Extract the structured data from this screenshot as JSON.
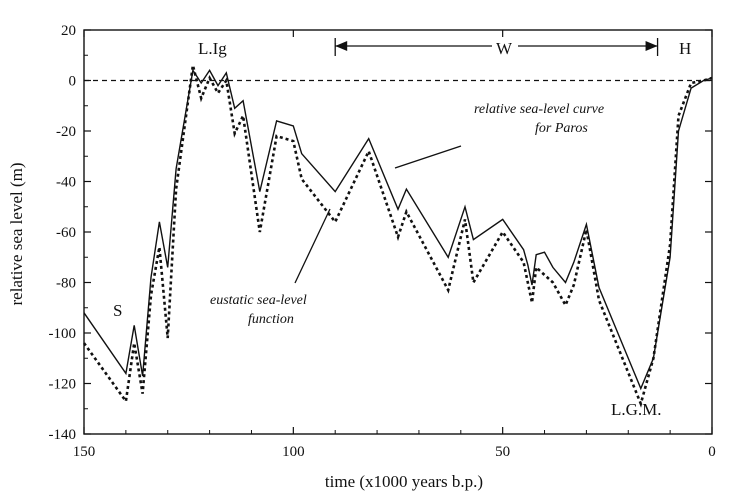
{
  "chart_data": {
    "type": "line",
    "title": "",
    "xlabel": "time (x1000 years b.p.)",
    "ylabel": "relative sea level (m)",
    "xlim": [
      150,
      0
    ],
    "ylim": [
      -140,
      20
    ],
    "x_ticks": [
      "150",
      "100",
      "50",
      "0"
    ],
    "y_ticks": [
      "20",
      "0",
      "-20",
      "-40",
      "-60",
      "-80",
      "-100",
      "-120",
      "-140"
    ],
    "grid": false,
    "series": [
      {
        "name": "relative sea-level curve for Paros",
        "style": "solid",
        "x": [
          150,
          140,
          138,
          136,
          134,
          132,
          130,
          128,
          124,
          122,
          120,
          118,
          116,
          114,
          112,
          108,
          104,
          100,
          98,
          90,
          82,
          75,
          73,
          63,
          59,
          57,
          50,
          45,
          44,
          43,
          42,
          40,
          38,
          35,
          33,
          30,
          27,
          17,
          14,
          10,
          8,
          5,
          2,
          0
        ],
        "values": [
          -92,
          -116,
          -97,
          -117,
          -78,
          -56,
          -74,
          -35,
          4,
          -1,
          4,
          -2,
          3,
          -11,
          -8,
          -44,
          -16,
          -18,
          -29,
          -44,
          -23,
          -51,
          -43,
          -70,
          -50,
          -63,
          -55,
          -67,
          -73,
          -81,
          -69,
          -68,
          -74,
          -80,
          -72,
          -57,
          -82,
          -122,
          -110,
          -70,
          -20,
          -3,
          0,
          1
        ]
      },
      {
        "name": "eustatic sea-level function",
        "style": "dashed",
        "x": [
          150,
          140,
          138,
          136,
          134,
          132,
          130,
          128,
          124,
          122,
          120,
          118,
          116,
          114,
          112,
          108,
          104,
          100,
          98,
          90,
          82,
          75,
          73,
          63,
          59,
          57,
          50,
          45,
          44,
          43,
          42,
          40,
          38,
          35,
          33,
          30,
          27,
          17,
          14,
          10,
          8,
          5,
          2,
          0
        ],
        "values": [
          -104,
          -127,
          -104,
          -124,
          -85,
          -66,
          -102,
          -43,
          6,
          -7,
          1,
          -5,
          0,
          -21,
          -14,
          -60,
          -22,
          -24,
          -39,
          -56,
          -28,
          -62,
          -52,
          -83,
          -55,
          -80,
          -60,
          -72,
          -80,
          -88,
          -74,
          -77,
          -80,
          -89,
          -81,
          -59,
          -87,
          -128,
          -110,
          -65,
          -14,
          -1,
          0,
          1
        ]
      }
    ],
    "reference_line": {
      "y": 0,
      "style": "dashed"
    },
    "annotations": {
      "label_s": "S",
      "label_lig": "L.Ig",
      "label_lgm": "L.G.M.",
      "label_w": "W",
      "label_h": "H",
      "paros_line1": "relative sea-level curve",
      "paros_line2": "for Paros",
      "eustatic_line1": "eustatic sea-level",
      "eustatic_line2": "function"
    },
    "w_range": [
      90,
      13
    ],
    "h_range": [
      13,
      0
    ]
  }
}
